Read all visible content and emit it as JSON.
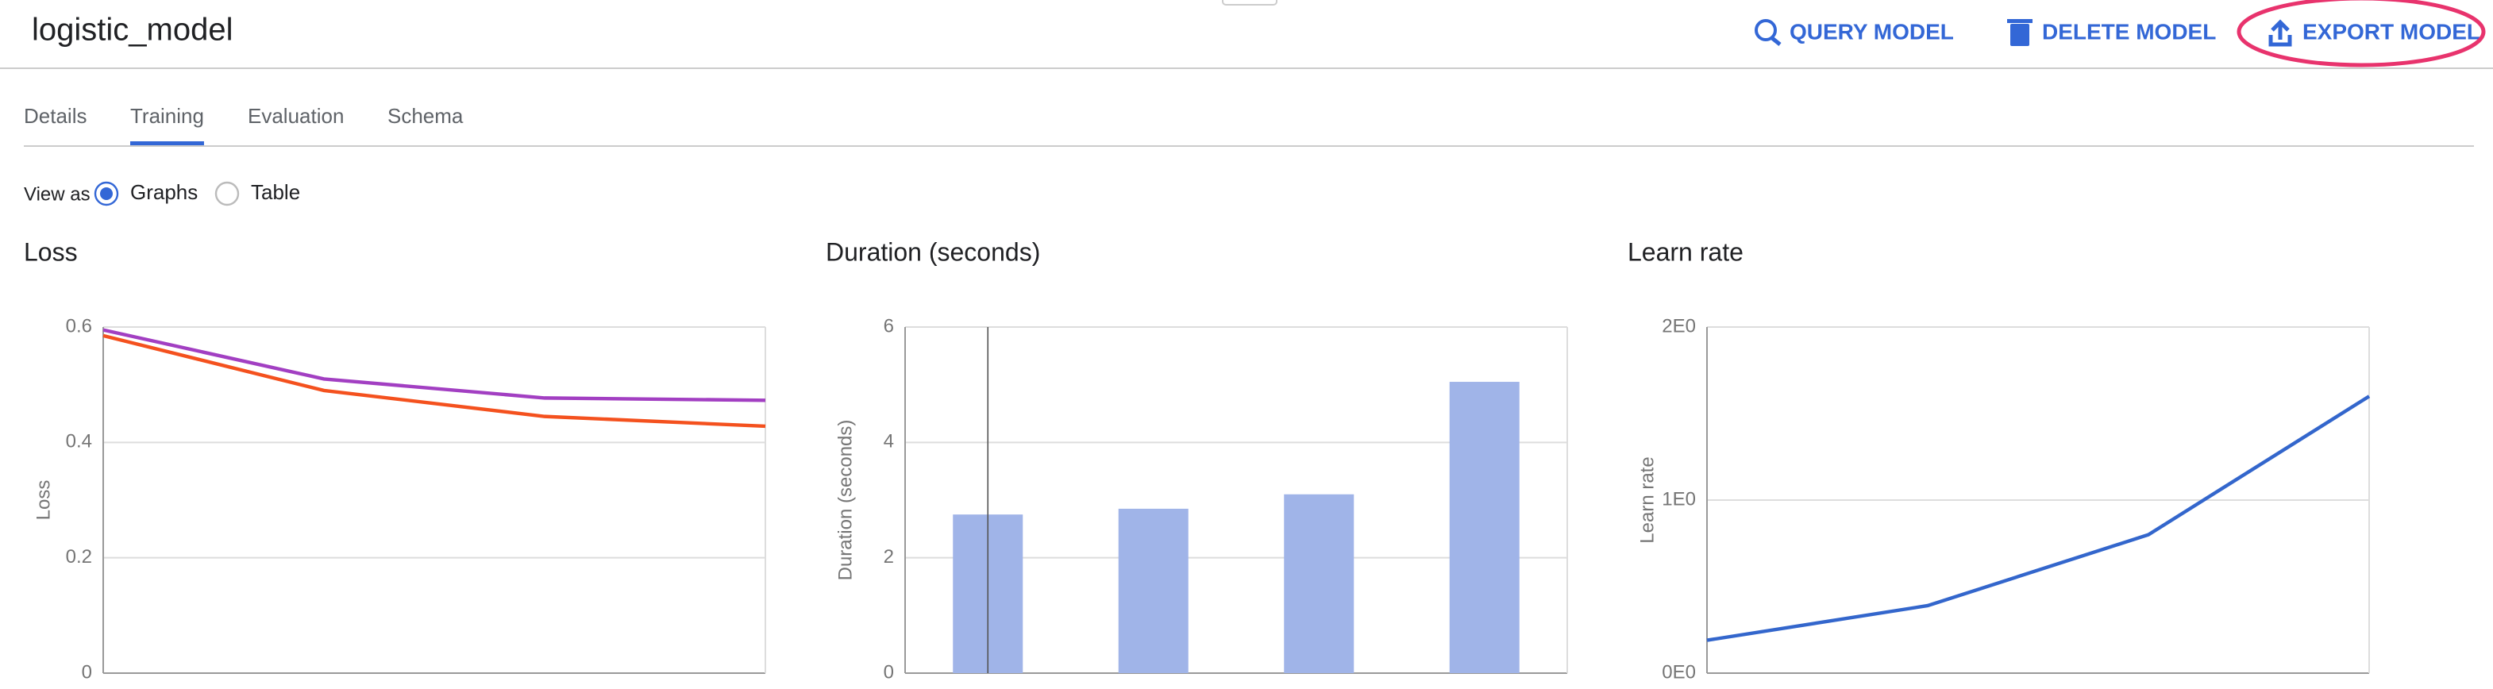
{
  "header": {
    "title": "logistic_model",
    "actions": [
      "QUERY MODEL",
      "DELETE MODEL",
      "EXPORT MODEL"
    ]
  },
  "tabs": {
    "items": [
      "Details",
      "Training",
      "Evaluation",
      "Schema"
    ],
    "selected": "Training"
  },
  "view_as": {
    "label": "View as",
    "options": [
      "Graphs",
      "Table"
    ],
    "selected": "Graphs"
  },
  "chart_data": [
    {
      "type": "line",
      "title": "Loss",
      "y_label": "Loss",
      "categories": [
        null,
        null,
        null,
        null
      ],
      "series": [
        {
          "color": "#a23fc2",
          "values": [
            0.595,
            0.51,
            0.477,
            0.473
          ]
        },
        {
          "color": "#f4511e",
          "values": [
            0.585,
            0.49,
            0.445,
            0.428
          ]
        }
      ],
      "ylim": [
        0,
        0.6
      ],
      "yticks": [
        0,
        0.2,
        0.4,
        0.6
      ],
      "grid": true
    },
    {
      "type": "bar",
      "title": "Duration (seconds)",
      "y_label": "Duration (seconds)",
      "categories": [
        null,
        null,
        null,
        null
      ],
      "series": [
        {
          "color": "#a0b4e8",
          "values": [
            2.75,
            2.85,
            3.1,
            5.05
          ]
        }
      ],
      "ylim": [
        0,
        6
      ],
      "yticks": [
        0,
        2,
        4,
        6
      ],
      "grid": true
    },
    {
      "type": "line",
      "title": "Learn rate",
      "y_label": "Learn rate",
      "categories": [
        null,
        null,
        null,
        null
      ],
      "series": [
        {
          "color": "#3366cc",
          "values": [
            0.19,
            0.39,
            0.8,
            1.6
          ]
        }
      ],
      "ylim": [
        0,
        2
      ],
      "yticks": [
        {
          "value": 0,
          "label": "0E0"
        },
        {
          "value": 1,
          "label": "1E0"
        },
        {
          "value": 2,
          "label": "2E0"
        }
      ],
      "grid": true
    }
  ]
}
